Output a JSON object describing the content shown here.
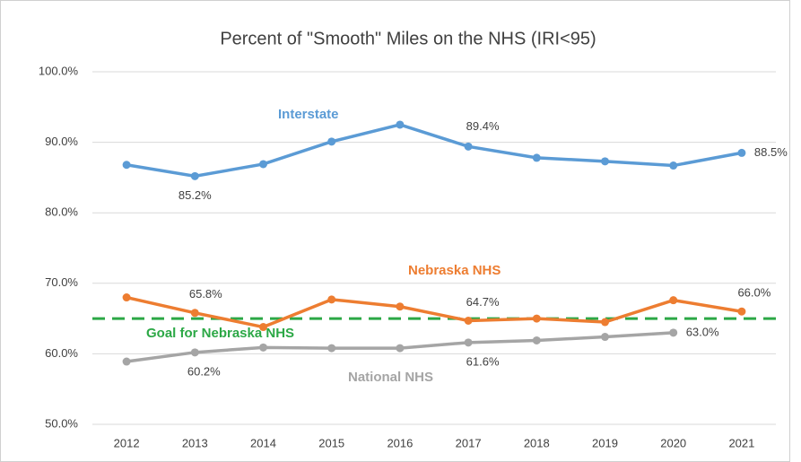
{
  "chart_data": {
    "type": "line",
    "title": "Percent of \"Smooth\" Miles on the NHS (IRI<95)",
    "categories": [
      "2012",
      "2013",
      "2014",
      "2015",
      "2016",
      "2017",
      "2018",
      "2019",
      "2020",
      "2021"
    ],
    "series": [
      {
        "name": "Interstate",
        "color": "#5b9bd5",
        "values": [
          86.8,
          85.2,
          86.9,
          90.1,
          92.5,
          89.4,
          87.8,
          87.3,
          86.7,
          88.5
        ],
        "value_labels": [
          null,
          "85.2%",
          null,
          null,
          null,
          "89.4%",
          null,
          null,
          null,
          "88.5%"
        ]
      },
      {
        "name": "Nebraska NHS",
        "color": "#ed7d31",
        "values": [
          68.0,
          65.8,
          63.8,
          67.7,
          66.7,
          64.7,
          65.0,
          64.5,
          67.6,
          66.0
        ],
        "value_labels": [
          null,
          "65.8%",
          null,
          null,
          null,
          "64.7%",
          null,
          null,
          null,
          "66.0%"
        ]
      },
      {
        "name": "National NHS",
        "color": "#a5a5a5",
        "values": [
          58.9,
          60.2,
          60.9,
          60.8,
          60.8,
          61.6,
          61.9,
          62.4,
          63.0,
          null
        ],
        "value_labels": [
          null,
          "60.2%",
          null,
          null,
          null,
          "61.6%",
          null,
          null,
          "63.0%",
          null
        ]
      }
    ],
    "goal": {
      "name": "Goal for Nebraska NHS",
      "value": 65.0,
      "color": "#2ca846"
    },
    "ylim": [
      50,
      100
    ],
    "yticks": [
      {
        "value": 50,
        "label": "50.0%"
      },
      {
        "value": 60,
        "label": "60.0%"
      },
      {
        "value": 70,
        "label": "70.0%"
      },
      {
        "value": 80,
        "label": "80.0%"
      },
      {
        "value": 90,
        "label": "90.0%"
      },
      {
        "value": 100,
        "label": "100.0%"
      }
    ],
    "grid": true
  }
}
